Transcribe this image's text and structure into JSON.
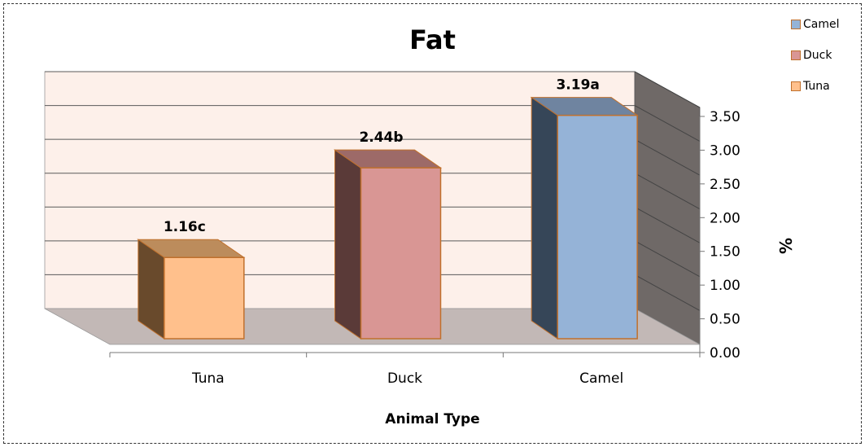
{
  "chart_data": {
    "type": "bar",
    "title": "Fat",
    "xlabel": "Animal Type",
    "ylabel": "%",
    "categories": [
      "Tuna",
      "Duck",
      "Camel"
    ],
    "values": [
      1.16,
      2.44,
      3.19
    ],
    "data_labels": [
      "1.16c",
      "2.44b",
      "3.19a"
    ],
    "ylim": [
      0,
      3.5
    ],
    "yticks": [
      "0.00",
      "0.50",
      "1.00",
      "1.50",
      "2.00",
      "2.50",
      "3.00",
      "3.50"
    ],
    "legend": [
      "Camel",
      "Duck",
      "Tuna"
    ],
    "legend_position": "top-right",
    "grid": true,
    "colors": {
      "Tuna": {
        "front": "#ffc08c",
        "side": "#694a2c",
        "top": "#bc8c5c"
      },
      "Duck": {
        "front": "#d99694",
        "side": "#5a3a38",
        "top": "#9d6a68"
      },
      "Camel": {
        "front": "#95b3d7",
        "side": "#364658",
        "top": "#6f84a0"
      },
      "border": "#c0702c",
      "back_wall": "#fdf0ea",
      "side_wall": "#6f6967",
      "floor": "#c2b8b6"
    }
  }
}
